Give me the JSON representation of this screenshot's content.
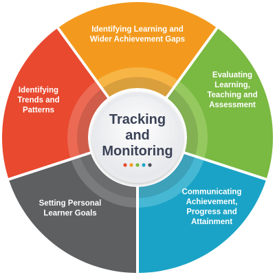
{
  "center": {
    "title_lines": [
      "Tracking",
      "and",
      "Monitoring"
    ],
    "dot_colors": [
      "#e8492f",
      "#f39a1e",
      "#7ab942",
      "#1ea7c7",
      "#4a4f5a"
    ]
  },
  "segments": [
    {
      "id": "identifying-gaps",
      "lines": [
        "Identifying Learning and",
        "Wider Achievement Gaps"
      ],
      "color": "#f39a1e",
      "accent": "#f7b546"
    },
    {
      "id": "evaluating",
      "lines": [
        "Evaluating",
        "Learning,",
        "Teaching and",
        "Assessment"
      ],
      "color": "#7ab942",
      "accent": "#95c95f"
    },
    {
      "id": "communicating",
      "lines": [
        "Communicating",
        "Achievement,",
        "Progress and",
        "Attainment"
      ],
      "color": "#1aa3c6",
      "accent": "#46b8d4"
    },
    {
      "id": "setting-goals",
      "lines": [
        "Setting Personal",
        "Learner Goals"
      ],
      "color": "#5e5f61",
      "accent": "#7a7b7d"
    },
    {
      "id": "identifying-trends",
      "lines": [
        "Identifying",
        "Trends and",
        "Patterns"
      ],
      "color": "#e8492f",
      "accent": "#ec6a54"
    }
  ]
}
